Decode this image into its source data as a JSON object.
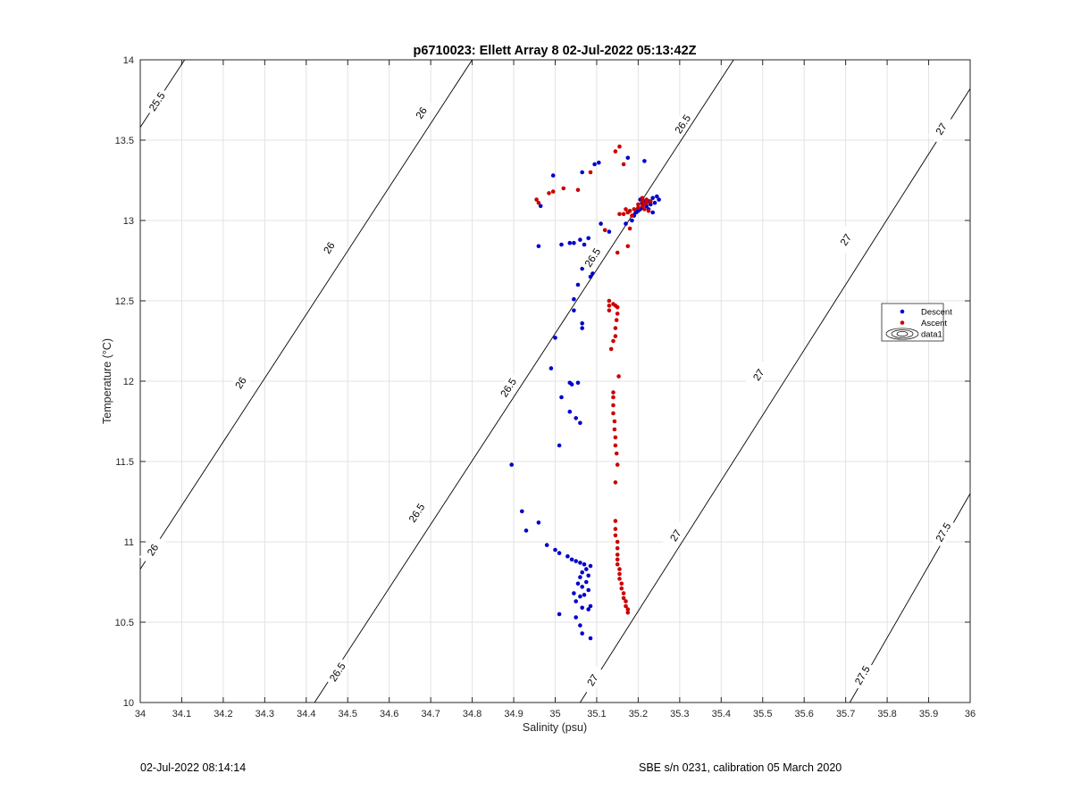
{
  "chart_data": {
    "type": "scatter",
    "title": "p6710023: Ellett Array 8 02-Jul-2022 05:13:42Z",
    "xlabel": "Salinity (psu)",
    "ylabel": "Temperature (°C)",
    "xlim": [
      34,
      36
    ],
    "ylim": [
      10,
      14
    ],
    "xticks": [
      "34",
      "34.1",
      "34.2",
      "34.3",
      "34.4",
      "34.5",
      "34.6",
      "34.7",
      "34.8",
      "34.9",
      "35",
      "35.1",
      "35.2",
      "35.3",
      "35.4",
      "35.5",
      "35.6",
      "35.7",
      "35.8",
      "35.9",
      "36"
    ],
    "yticks": [
      "10",
      "10.5",
      "11",
      "11.5",
      "12",
      "12.5",
      "13",
      "13.5",
      "14"
    ],
    "grid": true,
    "legend_position": "right",
    "legend": [
      "Descent",
      "Ascent",
      "data1"
    ],
    "colors": {
      "descent": "#0000cc",
      "ascent": "#cc0000",
      "contour": "#000000",
      "grid": "#e3e3e3"
    },
    "contours": [
      {
        "label": "25.5",
        "points": [
          [
            34.0,
            13.58
          ],
          [
            34.107,
            14.0
          ]
        ],
        "labels": [
          [
            34.04,
            13.74
          ]
        ]
      },
      {
        "label": "26",
        "points": [
          [
            34.0,
            10.83
          ],
          [
            34.8,
            14.0
          ]
        ],
        "labels": [
          [
            34.03,
            10.95
          ],
          [
            34.242,
            11.99
          ],
          [
            34.455,
            12.83
          ],
          [
            34.677,
            13.67
          ]
        ]
      },
      {
        "label": "26.5",
        "points": [
          [
            34.42,
            10.0
          ],
          [
            35.43,
            14.0
          ]
        ],
        "labels": [
          [
            34.475,
            10.19
          ],
          [
            34.666,
            11.18
          ],
          [
            34.887,
            11.96
          ],
          [
            35.09,
            12.77
          ],
          [
            35.307,
            13.6
          ]
        ]
      },
      {
        "label": "27",
        "points": [
          [
            35.06,
            10.0
          ],
          [
            36.0,
            13.82
          ]
        ],
        "labels": [
          [
            35.09,
            10.14
          ],
          [
            35.29,
            11.04
          ],
          [
            35.49,
            12.04
          ],
          [
            35.7,
            12.88
          ],
          [
            35.93,
            13.57
          ]
        ]
      },
      {
        "label": "27.5",
        "points": [
          [
            35.71,
            10.0
          ],
          [
            36.0,
            11.3
          ]
        ],
        "labels": [
          [
            35.74,
            10.17
          ],
          [
            35.935,
            11.06
          ]
        ]
      }
    ],
    "series": [
      {
        "name": "Descent",
        "points": [
          [
            35.085,
            10.4
          ],
          [
            35.065,
            10.43
          ],
          [
            35.06,
            10.48
          ],
          [
            35.05,
            10.53
          ],
          [
            35.01,
            10.55
          ],
          [
            35.08,
            10.58
          ],
          [
            35.065,
            10.59
          ],
          [
            35.085,
            10.6
          ],
          [
            35.05,
            10.63
          ],
          [
            35.06,
            10.66
          ],
          [
            35.045,
            10.68
          ],
          [
            35.07,
            10.67
          ],
          [
            35.08,
            10.7
          ],
          [
            35.065,
            10.72
          ],
          [
            35.055,
            10.74
          ],
          [
            35.075,
            10.75
          ],
          [
            35.06,
            10.78
          ],
          [
            35.08,
            10.79
          ],
          [
            35.065,
            10.81
          ],
          [
            35.075,
            10.83
          ],
          [
            35.085,
            10.85
          ],
          [
            35.07,
            10.86
          ],
          [
            35.06,
            10.87
          ],
          [
            35.05,
            10.88
          ],
          [
            35.04,
            10.89
          ],
          [
            35.03,
            10.91
          ],
          [
            35.01,
            10.93
          ],
          [
            35.0,
            10.95
          ],
          [
            34.98,
            10.98
          ],
          [
            34.93,
            11.07
          ],
          [
            34.96,
            11.12
          ],
          [
            34.92,
            11.19
          ],
          [
            34.895,
            11.48
          ],
          [
            35.01,
            11.6
          ],
          [
            35.06,
            11.74
          ],
          [
            35.05,
            11.77
          ],
          [
            35.035,
            11.81
          ],
          [
            35.015,
            11.9
          ],
          [
            35.04,
            11.98
          ],
          [
            35.055,
            11.99
          ],
          [
            35.035,
            11.99
          ],
          [
            34.99,
            12.08
          ],
          [
            35.0,
            12.27
          ],
          [
            35.065,
            12.33
          ],
          [
            35.065,
            12.36
          ],
          [
            35.045,
            12.44
          ],
          [
            35.045,
            12.51
          ],
          [
            35.055,
            12.6
          ],
          [
            35.085,
            12.65
          ],
          [
            35.09,
            12.67
          ],
          [
            35.065,
            12.7
          ],
          [
            35.075,
            12.76
          ],
          [
            35.07,
            12.85
          ],
          [
            35.08,
            12.89
          ],
          [
            35.06,
            12.88
          ],
          [
            35.045,
            12.86
          ],
          [
            35.035,
            12.86
          ],
          [
            35.015,
            12.85
          ],
          [
            34.96,
            12.84
          ],
          [
            35.13,
            12.93
          ],
          [
            35.11,
            12.98
          ],
          [
            35.17,
            12.98
          ],
          [
            35.185,
            13.0
          ],
          [
            35.19,
            13.03
          ],
          [
            35.195,
            13.05
          ],
          [
            35.2,
            13.06
          ],
          [
            35.205,
            13.07
          ],
          [
            35.21,
            13.08
          ],
          [
            35.22,
            13.09
          ],
          [
            35.23,
            13.1
          ],
          [
            35.24,
            13.11
          ],
          [
            35.25,
            13.13
          ],
          [
            35.245,
            13.15
          ],
          [
            35.235,
            13.14
          ],
          [
            35.225,
            13.12
          ],
          [
            35.215,
            13.12
          ],
          [
            35.205,
            13.13
          ],
          [
            35.21,
            13.11
          ],
          [
            35.225,
            13.07
          ],
          [
            35.235,
            13.05
          ],
          [
            34.965,
            13.09
          ],
          [
            34.995,
            13.28
          ],
          [
            35.065,
            13.3
          ],
          [
            35.095,
            13.35
          ],
          [
            35.105,
            13.36
          ],
          [
            35.175,
            13.39
          ],
          [
            35.215,
            13.37
          ]
        ]
      },
      {
        "name": "Ascent",
        "points": [
          [
            35.175,
            10.56
          ],
          [
            35.175,
            10.58
          ],
          [
            35.17,
            10.6
          ],
          [
            35.17,
            10.63
          ],
          [
            35.165,
            10.65
          ],
          [
            35.165,
            10.68
          ],
          [
            35.16,
            10.71
          ],
          [
            35.16,
            10.74
          ],
          [
            35.155,
            10.77
          ],
          [
            35.155,
            10.8
          ],
          [
            35.155,
            10.83
          ],
          [
            35.15,
            10.86
          ],
          [
            35.15,
            10.89
          ],
          [
            35.15,
            10.92
          ],
          [
            35.15,
            10.96
          ],
          [
            35.15,
            11.0
          ],
          [
            35.145,
            11.04
          ],
          [
            35.145,
            11.08
          ],
          [
            35.145,
            11.13
          ],
          [
            35.145,
            11.37
          ],
          [
            35.15,
            11.48
          ],
          [
            35.148,
            11.55
          ],
          [
            35.145,
            11.6
          ],
          [
            35.145,
            11.65
          ],
          [
            35.143,
            11.7
          ],
          [
            35.143,
            11.75
          ],
          [
            35.14,
            11.8
          ],
          [
            35.14,
            11.85
          ],
          [
            35.14,
            11.9
          ],
          [
            35.14,
            11.93
          ],
          [
            35.153,
            12.03
          ],
          [
            35.135,
            12.2
          ],
          [
            35.14,
            12.25
          ],
          [
            35.145,
            12.28
          ],
          [
            35.145,
            12.33
          ],
          [
            35.148,
            12.38
          ],
          [
            35.15,
            12.42
          ],
          [
            35.15,
            12.46
          ],
          [
            35.145,
            12.47
          ],
          [
            35.14,
            12.48
          ],
          [
            35.13,
            12.5
          ],
          [
            35.13,
            12.47
          ],
          [
            35.13,
            12.44
          ],
          [
            35.175,
            12.84
          ],
          [
            35.18,
            12.95
          ],
          [
            35.155,
            13.04
          ],
          [
            35.165,
            13.04
          ],
          [
            35.175,
            13.05
          ],
          [
            35.18,
            13.06
          ],
          [
            35.19,
            13.07
          ],
          [
            35.2,
            13.08
          ],
          [
            35.21,
            13.09
          ],
          [
            35.215,
            13.1
          ],
          [
            35.22,
            13.11
          ],
          [
            35.21,
            13.12
          ],
          [
            35.2,
            13.1
          ],
          [
            35.21,
            13.14
          ],
          [
            35.22,
            13.13
          ],
          [
            35.23,
            13.12
          ],
          [
            35.215,
            13.07
          ],
          [
            35.225,
            13.06
          ],
          [
            35.17,
            13.07
          ],
          [
            35.185,
            13.03
          ],
          [
            35.12,
            12.94
          ],
          [
            35.15,
            12.8
          ],
          [
            34.955,
            13.13
          ],
          [
            34.96,
            13.11
          ],
          [
            34.985,
            13.17
          ],
          [
            34.995,
            13.18
          ],
          [
            35.02,
            13.2
          ],
          [
            35.055,
            13.19
          ],
          [
            35.085,
            13.3
          ],
          [
            35.145,
            13.43
          ],
          [
            35.155,
            13.46
          ],
          [
            35.165,
            13.35
          ]
        ]
      }
    ]
  },
  "footer": {
    "left": "02-Jul-2022 08:14:14",
    "right": "SBE s/n 0231, calibration 05 March 2020"
  }
}
